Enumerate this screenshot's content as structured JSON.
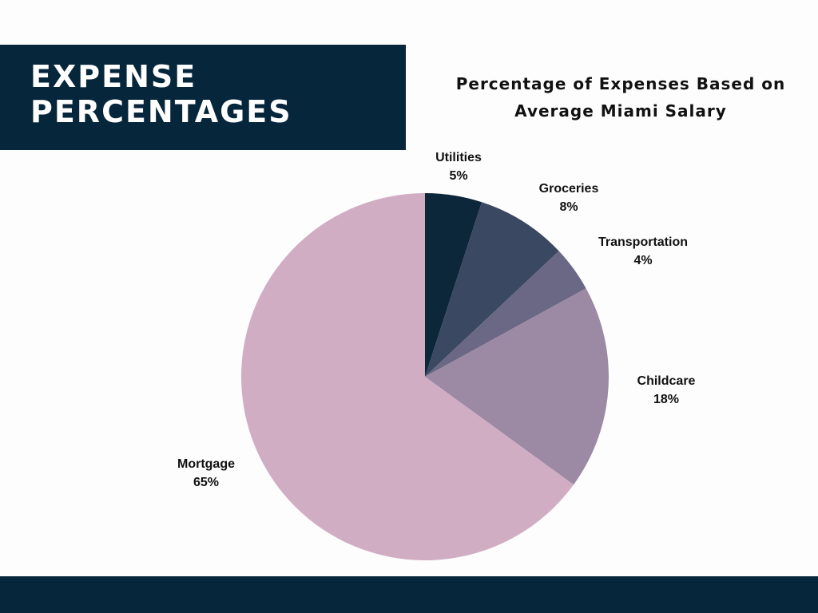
{
  "header": {
    "title_line1": "EXPENSE",
    "title_line2": "PERCENTAGES"
  },
  "chart_data": {
    "type": "pie",
    "title_line1": "Percentage of Expenses Based on",
    "title_line2": "Average Miami Salary",
    "slices": [
      {
        "label": "Utilities",
        "value": 5,
        "value_label": "5%",
        "color": "#0b2739"
      },
      {
        "label": "Groceries",
        "value": 8,
        "value_label": "8%",
        "color": "#3a4862"
      },
      {
        "label": "Transportation",
        "value": 4,
        "value_label": "4%",
        "color": "#6a6884"
      },
      {
        "label": "Childcare",
        "value": 18,
        "value_label": "18%",
        "color": "#9c89a4"
      },
      {
        "label": "Mortgage",
        "value": 65,
        "value_label": "65%",
        "color": "#d1adc4"
      }
    ]
  },
  "colors": {
    "banner": "#06263b",
    "background": "#fdfdfd",
    "text": "#111111"
  }
}
